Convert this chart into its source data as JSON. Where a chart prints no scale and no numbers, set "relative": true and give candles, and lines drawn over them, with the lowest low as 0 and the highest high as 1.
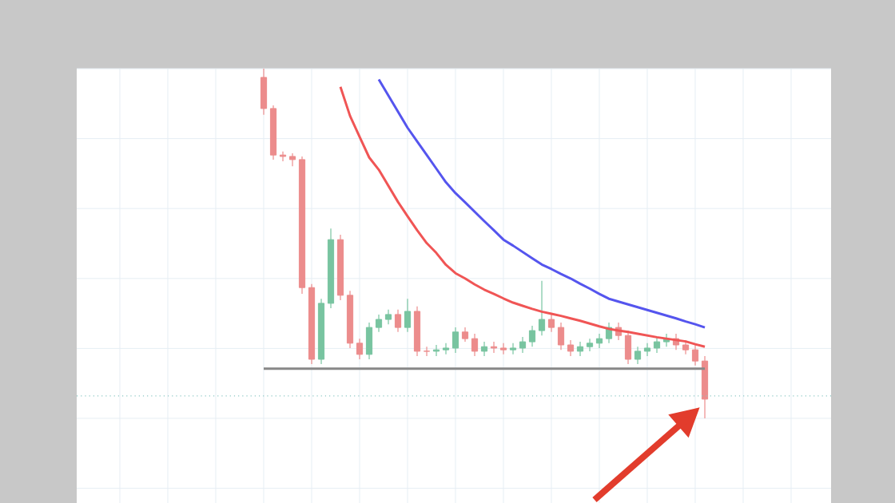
{
  "chart_data": {
    "type": "candlestick",
    "relative": true,
    "grid": true,
    "categories": [
      null,
      null,
      null,
      null,
      null,
      null,
      null,
      null,
      null,
      null,
      null,
      null,
      null,
      null,
      null,
      null,
      null,
      null,
      null,
      null,
      null,
      null,
      null,
      null,
      null,
      null,
      null,
      null,
      null,
      null,
      null,
      null,
      null,
      null,
      null,
      null,
      null,
      null,
      null,
      null,
      null,
      null,
      null,
      null,
      null,
      null,
      null
    ],
    "ohlc": [
      [
        0.975,
        1.0,
        0.868,
        0.886
      ],
      [
        0.886,
        0.895,
        0.74,
        0.753
      ],
      [
        0.753,
        0.763,
        0.735,
        0.749
      ],
      [
        0.749,
        0.758,
        0.721,
        0.74
      ],
      [
        0.74,
        0.749,
        0.356,
        0.374
      ],
      [
        0.374,
        0.384,
        0.155,
        0.169
      ],
      [
        0.169,
        0.342,
        0.155,
        0.329
      ],
      [
        0.329,
        0.543,
        0.315,
        0.511
      ],
      [
        0.511,
        0.525,
        0.338,
        0.352
      ],
      [
        0.352,
        0.365,
        0.201,
        0.215
      ],
      [
        0.215,
        0.228,
        0.169,
        0.183
      ],
      [
        0.183,
        0.274,
        0.169,
        0.26
      ],
      [
        0.26,
        0.297,
        0.247,
        0.283
      ],
      [
        0.283,
        0.311,
        0.269,
        0.297
      ],
      [
        0.297,
        0.311,
        0.247,
        0.26
      ],
      [
        0.26,
        0.342,
        0.247,
        0.306
      ],
      [
        0.306,
        0.32,
        0.178,
        0.192
      ],
      [
        0.192,
        0.205,
        0.178,
        0.192
      ],
      [
        0.192,
        0.21,
        0.178,
        0.196
      ],
      [
        0.196,
        0.215,
        0.183,
        0.201
      ],
      [
        0.201,
        0.26,
        0.187,
        0.247
      ],
      [
        0.247,
        0.26,
        0.219,
        0.228
      ],
      [
        0.228,
        0.242,
        0.178,
        0.192
      ],
      [
        0.192,
        0.219,
        0.178,
        0.205
      ],
      [
        0.205,
        0.219,
        0.187,
        0.201
      ],
      [
        0.201,
        0.215,
        0.183,
        0.196
      ],
      [
        0.196,
        0.215,
        0.183,
        0.201
      ],
      [
        0.201,
        0.233,
        0.187,
        0.219
      ],
      [
        0.219,
        0.265,
        0.205,
        0.251
      ],
      [
        0.251,
        0.393,
        0.237,
        0.283
      ],
      [
        0.283,
        0.297,
        0.247,
        0.26
      ],
      [
        0.26,
        0.274,
        0.196,
        0.21
      ],
      [
        0.21,
        0.224,
        0.178,
        0.192
      ],
      [
        0.192,
        0.219,
        0.178,
        0.205
      ],
      [
        0.205,
        0.228,
        0.192,
        0.215
      ],
      [
        0.215,
        0.242,
        0.201,
        0.228
      ],
      [
        0.228,
        0.274,
        0.215,
        0.26
      ],
      [
        0.26,
        0.274,
        0.224,
        0.237
      ],
      [
        0.237,
        0.251,
        0.155,
        0.169
      ],
      [
        0.169,
        0.205,
        0.155,
        0.192
      ],
      [
        0.192,
        0.215,
        0.178,
        0.201
      ],
      [
        0.201,
        0.233,
        0.187,
        0.219
      ],
      [
        0.219,
        0.242,
        0.205,
        0.228
      ],
      [
        0.228,
        0.242,
        0.196,
        0.21
      ],
      [
        0.21,
        0.224,
        0.183,
        0.196
      ],
      [
        0.196,
        0.21,
        0.151,
        0.164
      ],
      [
        0.164,
        0.178,
        0.0,
        0.055
      ]
    ],
    "series": [
      {
        "type": "line",
        "color": "#f05555",
        "values": [
          null,
          null,
          null,
          null,
          null,
          null,
          null,
          null,
          0.948,
          0.865,
          0.805,
          0.746,
          0.711,
          0.665,
          0.619,
          0.578,
          0.538,
          0.501,
          0.473,
          0.439,
          0.415,
          0.4,
          0.383,
          0.368,
          0.356,
          0.343,
          0.331,
          0.322,
          0.313,
          0.305,
          0.299,
          0.293,
          0.286,
          0.279,
          0.271,
          0.263,
          0.256,
          0.251,
          0.247,
          0.242,
          0.237,
          0.232,
          0.228,
          0.224,
          0.22,
          0.212,
          0.205
        ]
      },
      {
        "type": "line",
        "color": "#5555ee",
        "values": [
          null,
          null,
          null,
          null,
          null,
          null,
          null,
          null,
          null,
          null,
          null,
          null,
          0.969,
          0.923,
          0.877,
          0.831,
          0.792,
          0.753,
          0.714,
          0.675,
          0.644,
          0.618,
          0.591,
          0.564,
          0.538,
          0.511,
          0.494,
          0.476,
          0.458,
          0.44,
          0.427,
          0.413,
          0.4,
          0.385,
          0.371,
          0.356,
          0.342,
          0.334,
          0.326,
          0.318,
          0.31,
          0.302,
          0.294,
          0.286,
          0.277,
          0.269,
          0.26
        ]
      },
      {
        "type": "line",
        "color": "#888888",
        "values": [
          0.142,
          0.142,
          0.142,
          0.142,
          0.142,
          0.142,
          0.142,
          0.142,
          0.142,
          0.142,
          0.142,
          0.142,
          0.142,
          0.142,
          0.142,
          0.142,
          0.142,
          0.142,
          0.142,
          0.142,
          0.142,
          0.142,
          0.142,
          0.142,
          0.142,
          0.142,
          0.142,
          0.142,
          0.142,
          0.142,
          0.142,
          0.142,
          0.142,
          0.142,
          0.142,
          0.142,
          0.142,
          0.142,
          0.142,
          0.142,
          0.142,
          0.142,
          0.142,
          0.142,
          0.142,
          0.142,
          0.142
        ]
      }
    ],
    "ref_lines": [
      {
        "axis": "y",
        "value": 0.064,
        "color": "#8cc8c4",
        "line_style": "dotted"
      }
    ]
  }
}
